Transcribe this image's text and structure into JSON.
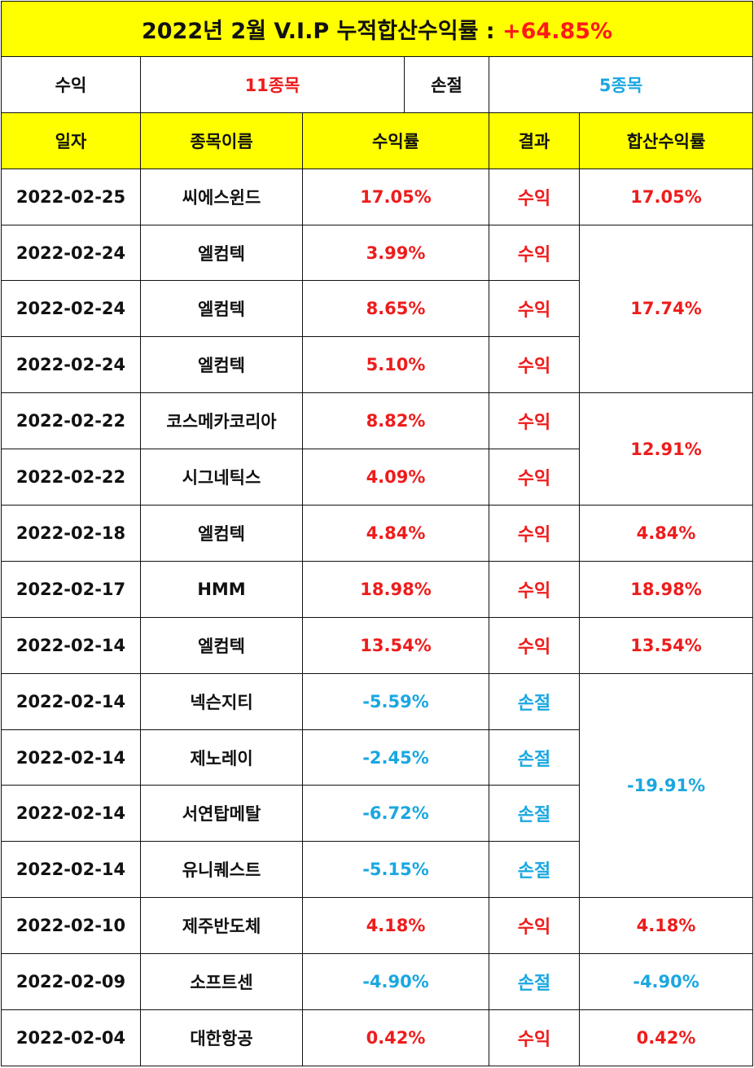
{
  "title": {
    "text": "2022년 2월 V.I.P 누적합산수익률 : ",
    "total": "+64.85%"
  },
  "summary": {
    "gain_label": "수익",
    "gain_count": "11종목",
    "loss_label": "손절",
    "loss_count": "5종목"
  },
  "headers": {
    "date": "일자",
    "name": "종목이름",
    "rate": "수익률",
    "result": "결과",
    "combined": "합산수익률"
  },
  "colors": {
    "header_bg": "#ffff00",
    "gain": "#ee1c1c",
    "loss": "#1aa7e0"
  },
  "rows": [
    {
      "date": "2022-02-25",
      "name": "씨에스윈드",
      "rate": "17.05%",
      "result": "수익",
      "combined": "17.05%"
    },
    {
      "date": "2022-02-24",
      "name": "엘컴텍",
      "rate": "3.99%",
      "result": "수익",
      "combined": "17.74%"
    },
    {
      "date": "2022-02-24",
      "name": "엘컴텍",
      "rate": "8.65%",
      "result": "수익"
    },
    {
      "date": "2022-02-24",
      "name": "엘컴텍",
      "rate": "5.10%",
      "result": "수익"
    },
    {
      "date": "2022-02-22",
      "name": "코스메카코리아",
      "rate": "8.82%",
      "result": "수익",
      "combined": "12.91%"
    },
    {
      "date": "2022-02-22",
      "name": "시그네틱스",
      "rate": "4.09%",
      "result": "수익"
    },
    {
      "date": "2022-02-18",
      "name": "엘컴텍",
      "rate": "4.84%",
      "result": "수익",
      "combined": "4.84%"
    },
    {
      "date": "2022-02-17",
      "name": "HMM",
      "rate": "18.98%",
      "result": "수익",
      "combined": "18.98%"
    },
    {
      "date": "2022-02-14",
      "name": "엘컴텍",
      "rate": "13.54%",
      "result": "수익",
      "combined": "13.54%"
    },
    {
      "date": "2022-02-14",
      "name": "넥슨지티",
      "rate": "-5.59%",
      "result": "손절",
      "combined": "-19.91%"
    },
    {
      "date": "2022-02-14",
      "name": "제노레이",
      "rate": "-2.45%",
      "result": "손절"
    },
    {
      "date": "2022-02-14",
      "name": "서연탑메탈",
      "rate": "-6.72%",
      "result": "손절"
    },
    {
      "date": "2022-02-14",
      "name": "유니퀘스트",
      "rate": "-5.15%",
      "result": "손절"
    },
    {
      "date": "2022-02-10",
      "name": "제주반도체",
      "rate": "4.18%",
      "result": "수익",
      "combined": "4.18%"
    },
    {
      "date": "2022-02-09",
      "name": "소프트센",
      "rate": "-4.90%",
      "result": "손절",
      "combined": "-4.90%"
    },
    {
      "date": "2022-02-04",
      "name": "대한항공",
      "rate": "0.42%",
      "result": "수익",
      "combined": "0.42%"
    }
  ]
}
